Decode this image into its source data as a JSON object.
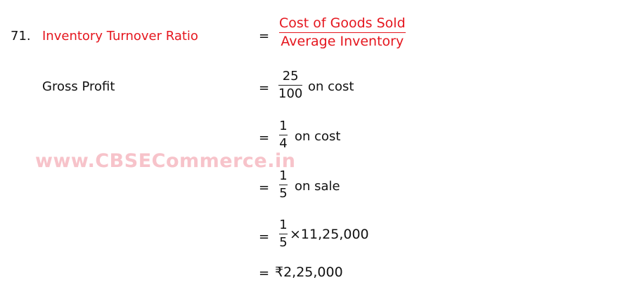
{
  "question_number": "71.",
  "title": "Inventory Turnover Ratio",
  "equals": "=",
  "formula": {
    "numerator": "Cost of Goods Sold",
    "denominator": "Average Inventory"
  },
  "gross_profit_label": "Gross Profit",
  "steps": [
    {
      "numerator": "25",
      "denominator": "100",
      "suffix": "on cost"
    },
    {
      "numerator": "1",
      "denominator": "4",
      "suffix": "on cost"
    },
    {
      "numerator": "1",
      "denominator": "5",
      "suffix": "on sale"
    },
    {
      "numerator": "1",
      "denominator": "5",
      "suffix": "×11,25,000"
    }
  ],
  "result": "₹2,25,000",
  "watermark": "www.CBSECommerce.in",
  "colors": {
    "heading": "#e5161e",
    "watermark": "#f7c3ca"
  }
}
